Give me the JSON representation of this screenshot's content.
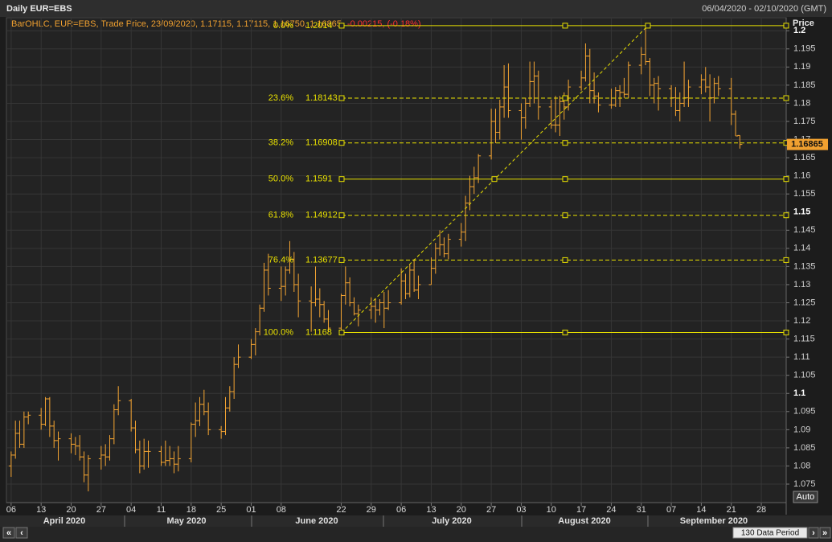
{
  "chart_data": {
    "type": "ohlc",
    "title": "Daily EUR=EBS",
    "date_range": "06/04/2020 - 02/10/2020 (GMT)",
    "legend": "BarOHLC, EUR=EBS, Trade Price, 23/09/2020, 1.17115, 1.17115, 1.16750, 1.16865,",
    "change": "-0.00215, (-0.18%)",
    "y_axis_title": "Price",
    "color": "#f5a532",
    "grid": true,
    "ylim": [
      1.0699,
      1.2036
    ],
    "yticks": [
      1.075,
      1.08,
      1.085,
      1.09,
      1.095,
      1.1,
      1.105,
      1.11,
      1.115,
      1.12,
      1.125,
      1.13,
      1.135,
      1.14,
      1.145,
      1.15,
      1.155,
      1.16,
      1.165,
      1.17,
      1.175,
      1.18,
      1.185,
      1.19,
      1.195,
      1.2
    ],
    "xlim": [
      -1.1,
      180.8
    ],
    "xticks": [
      {
        "value": 0,
        "label": "06"
      },
      {
        "value": 7,
        "label": "13"
      },
      {
        "value": 14,
        "label": "20"
      },
      {
        "value": 21,
        "label": "27"
      },
      {
        "value": 28,
        "label": "04"
      },
      {
        "value": 35,
        "label": "11"
      },
      {
        "value": 42,
        "label": "18"
      },
      {
        "value": 49,
        "label": "25"
      },
      {
        "value": 56,
        "label": "01"
      },
      {
        "value": 63,
        "label": "08"
      },
      {
        "value": 77,
        "label": "22"
      },
      {
        "value": 84,
        "label": "29"
      },
      {
        "value": 91,
        "label": "06"
      },
      {
        "value": 98,
        "label": "13"
      },
      {
        "value": 105,
        "label": "20"
      },
      {
        "value": 112,
        "label": "27"
      },
      {
        "value": 119,
        "label": "03"
      },
      {
        "value": 126,
        "label": "10"
      },
      {
        "value": 133,
        "label": "17"
      },
      {
        "value": 140,
        "label": "24"
      },
      {
        "value": 147,
        "label": "31"
      },
      {
        "value": 154,
        "label": "07"
      },
      {
        "value": 161,
        "label": "14"
      },
      {
        "value": 168,
        "label": "21"
      },
      {
        "value": 175,
        "label": "28"
      }
    ],
    "months": [
      "April 2020",
      "May 2020",
      "June 2020",
      "July 2020",
      "August 2020",
      "September 2020"
    ],
    "ohlc": [
      [
        1.08,
        1.084,
        1.077,
        1.083
      ],
      [
        1.083,
        1.0925,
        1.082,
        1.089
      ],
      [
        1.089,
        1.0925,
        1.085,
        1.086
      ],
      [
        1.086,
        1.095,
        1.085,
        1.0935
      ],
      [
        1.0935,
        1.095,
        1.0915,
        1.094
      ],
      [
        1.094,
        1.096,
        1.09,
        1.0915
      ],
      [
        1.0915,
        1.099,
        1.091,
        1.0985
      ],
      [
        1.0985,
        1.099,
        1.088,
        1.091
      ],
      [
        1.091,
        1.0925,
        1.085,
        1.087
      ],
      [
        1.087,
        1.0895,
        1.0815,
        1.0875
      ],
      [
        1.0875,
        1.089,
        1.0835,
        1.086
      ],
      [
        1.086,
        1.088,
        1.083,
        1.0855
      ],
      [
        1.0855,
        1.0885,
        1.0815,
        1.0825
      ],
      [
        1.0825,
        1.084,
        1.0755,
        1.0775
      ],
      [
        1.0775,
        1.083,
        1.073,
        1.082
      ],
      [
        1.082,
        1.0855,
        1.079,
        1.083
      ],
      [
        1.083,
        1.086,
        1.08,
        1.0825
      ],
      [
        1.0825,
        1.0885,
        1.0815,
        1.0875
      ],
      [
        1.0875,
        1.097,
        1.086,
        1.0955
      ],
      [
        1.0955,
        1.102,
        1.094,
        1.098
      ],
      [
        1.098,
        1.0985,
        1.0895,
        1.0905
      ],
      [
        1.0905,
        1.0925,
        1.0835,
        1.0845
      ],
      [
        1.0845,
        1.087,
        1.078,
        1.08
      ],
      [
        1.08,
        1.0875,
        1.079,
        1.084
      ],
      [
        1.084,
        1.087,
        1.0795,
        1.084
      ],
      [
        1.084,
        1.0855,
        1.08,
        1.081
      ],
      [
        1.081,
        1.087,
        1.08,
        1.0815
      ],
      [
        1.0815,
        1.0855,
        1.08,
        1.082
      ],
      [
        1.082,
        1.084,
        1.078,
        1.0805
      ],
      [
        1.0805,
        1.0855,
        1.0785,
        1.082
      ],
      [
        1.082,
        1.092,
        1.081,
        1.0915
      ],
      [
        1.0915,
        1.0975,
        1.088,
        1.0925
      ],
      [
        1.0925,
        1.099,
        1.091,
        1.097
      ],
      [
        1.097,
        1.101,
        1.094,
        1.095
      ],
      [
        1.095,
        1.0975,
        1.0885,
        1.09
      ],
      [
        1.09,
        1.091,
        1.0875,
        1.0895
      ],
      [
        1.0895,
        1.099,
        1.0885,
        1.096
      ],
      [
        1.096,
        1.102,
        1.095,
        1.1005
      ],
      [
        1.1005,
        1.11,
        1.0985,
        1.108
      ],
      [
        1.108,
        1.1135,
        1.107,
        1.11
      ],
      [
        1.11,
        1.115,
        1.1095,
        1.1135
      ],
      [
        1.1135,
        1.118,
        1.1105,
        1.117
      ],
      [
        1.117,
        1.1245,
        1.116,
        1.1235
      ],
      [
        1.1235,
        1.136,
        1.1225,
        1.134
      ],
      [
        1.134,
        1.1385,
        1.127,
        1.129
      ],
      [
        1.129,
        1.135,
        1.1255,
        1.1295
      ],
      [
        1.1295,
        1.135,
        1.127,
        1.134
      ],
      [
        1.134,
        1.142,
        1.133,
        1.137
      ],
      [
        1.137,
        1.139,
        1.128,
        1.13
      ],
      [
        1.13,
        1.133,
        1.121,
        1.1255
      ],
      [
        1.1255,
        1.1295,
        1.117,
        1.125
      ],
      [
        1.125,
        1.135,
        1.124,
        1.126
      ],
      [
        1.126,
        1.129,
        1.121,
        1.1245
      ],
      [
        1.1245,
        1.1255,
        1.1195,
        1.1205
      ],
      [
        1.1205,
        1.123,
        1.117,
        1.118
      ],
      [
        1.118,
        1.1275,
        1.117,
        1.127
      ],
      [
        1.127,
        1.135,
        1.1245,
        1.1305
      ],
      [
        1.1305,
        1.132,
        1.124,
        1.125
      ],
      [
        1.125,
        1.1265,
        1.1215,
        1.122
      ],
      [
        1.122,
        1.1245,
        1.1185,
        1.123
      ],
      [
        1.123,
        1.1265,
        1.1205,
        1.124
      ],
      [
        1.124,
        1.126,
        1.1195,
        1.123
      ],
      [
        1.123,
        1.126,
        1.1215,
        1.125
      ],
      [
        1.125,
        1.128,
        1.118,
        1.1235
      ],
      [
        1.1235,
        1.1285,
        1.123,
        1.125
      ],
      [
        1.125,
        1.1345,
        1.1245,
        1.131
      ],
      [
        1.131,
        1.133,
        1.126,
        1.1275
      ],
      [
        1.1275,
        1.1355,
        1.1265,
        1.134
      ],
      [
        1.134,
        1.137,
        1.128,
        1.1285
      ],
      [
        1.1285,
        1.1325,
        1.126,
        1.13
      ],
      [
        1.13,
        1.1375,
        1.13,
        1.1345
      ],
      [
        1.1345,
        1.1415,
        1.133,
        1.14
      ],
      [
        1.14,
        1.145,
        1.138,
        1.141
      ],
      [
        1.141,
        1.143,
        1.1375,
        1.1385
      ],
      [
        1.1385,
        1.144,
        1.137,
        1.1425
      ],
      [
        1.1425,
        1.147,
        1.1405,
        1.1445
      ],
      [
        1.1445,
        1.1545,
        1.142,
        1.1525
      ],
      [
        1.1525,
        1.16,
        1.1505,
        1.157
      ],
      [
        1.157,
        1.1625,
        1.155,
        1.1595
      ],
      [
        1.1595,
        1.166,
        1.158,
        1.1655
      ],
      [
        1.1655,
        1.1785,
        1.1645,
        1.175
      ],
      [
        1.175,
        1.1785,
        1.169,
        1.172
      ],
      [
        1.172,
        1.181,
        1.17,
        1.179
      ],
      [
        1.179,
        1.1905,
        1.176,
        1.1845
      ],
      [
        1.1845,
        1.191,
        1.176,
        1.178
      ],
      [
        1.178,
        1.18,
        1.17,
        1.176
      ],
      [
        1.176,
        1.1815,
        1.173,
        1.18
      ],
      [
        1.18,
        1.1915,
        1.179,
        1.186
      ],
      [
        1.186,
        1.1915,
        1.18,
        1.1875
      ],
      [
        1.1875,
        1.189,
        1.1755,
        1.179
      ],
      [
        1.179,
        1.181,
        1.173,
        1.174
      ],
      [
        1.174,
        1.182,
        1.172,
        1.174
      ],
      [
        1.174,
        1.182,
        1.171,
        1.1805
      ],
      [
        1.1805,
        1.183,
        1.1755,
        1.179
      ],
      [
        1.179,
        1.1865,
        1.178,
        1.1845
      ],
      [
        1.1845,
        1.189,
        1.1835,
        1.187
      ],
      [
        1.187,
        1.1965,
        1.186,
        1.193
      ],
      [
        1.193,
        1.195,
        1.18,
        1.1835
      ],
      [
        1.1835,
        1.1885,
        1.18,
        1.182
      ],
      [
        1.182,
        1.183,
        1.1775,
        1.1795
      ],
      [
        1.1795,
        1.184,
        1.1785,
        1.1795
      ],
      [
        1.1795,
        1.1845,
        1.179,
        1.1835
      ],
      [
        1.1835,
        1.185,
        1.179,
        1.183
      ],
      [
        1.183,
        1.187,
        1.1815,
        1.1825
      ],
      [
        1.1825,
        1.1915,
        1.1815,
        1.1905
      ],
      [
        1.1905,
        1.1955,
        1.188,
        1.1935
      ],
      [
        1.1935,
        1.2014,
        1.1905,
        1.1915
      ],
      [
        1.1915,
        1.1925,
        1.182,
        1.185
      ],
      [
        1.185,
        1.187,
        1.18,
        1.1855
      ],
      [
        1.1855,
        1.1875,
        1.178,
        1.184
      ],
      [
        1.184,
        1.185,
        1.179,
        1.1815
      ],
      [
        1.1815,
        1.1845,
        1.1765,
        1.178
      ],
      [
        1.178,
        1.183,
        1.175,
        1.18
      ],
      [
        1.18,
        1.1915,
        1.179,
        1.1815
      ],
      [
        1.1815,
        1.1865,
        1.179,
        1.1845
      ],
      [
        1.1845,
        1.188,
        1.1825,
        1.1865
      ],
      [
        1.1865,
        1.19,
        1.183,
        1.1845
      ],
      [
        1.1845,
        1.188,
        1.175,
        1.1815
      ],
      [
        1.1815,
        1.187,
        1.18,
        1.1855
      ],
      [
        1.1855,
        1.1875,
        1.182,
        1.184
      ],
      [
        1.184,
        1.187,
        1.174,
        1.177
      ],
      [
        1.177,
        1.178,
        1.171,
        1.171
      ],
      [
        1.17115,
        1.17115,
        1.1675,
        1.16865
      ]
    ],
    "last_price": 1.16865,
    "fib_color": "#e8e000",
    "fib_levels": [
      {
        "label": "0.0%",
        "price": 1.2014,
        "dashed": false
      },
      {
        "label": "23.6%",
        "price": 1.18143,
        "dashed": true
      },
      {
        "label": "38.2%",
        "price": 1.16908,
        "dashed": true
      },
      {
        "label": "50.0%",
        "price": 1.1591,
        "dashed": false
      },
      {
        "label": "61.8%",
        "price": 1.14912,
        "dashed": true
      },
      {
        "label": "76.4%",
        "price": 1.13677,
        "dashed": true
      },
      {
        "label": "100.0%",
        "price": 1.1168,
        "dashed": false
      }
    ],
    "auto_button": "Auto",
    "period": "130 Data Period"
  }
}
